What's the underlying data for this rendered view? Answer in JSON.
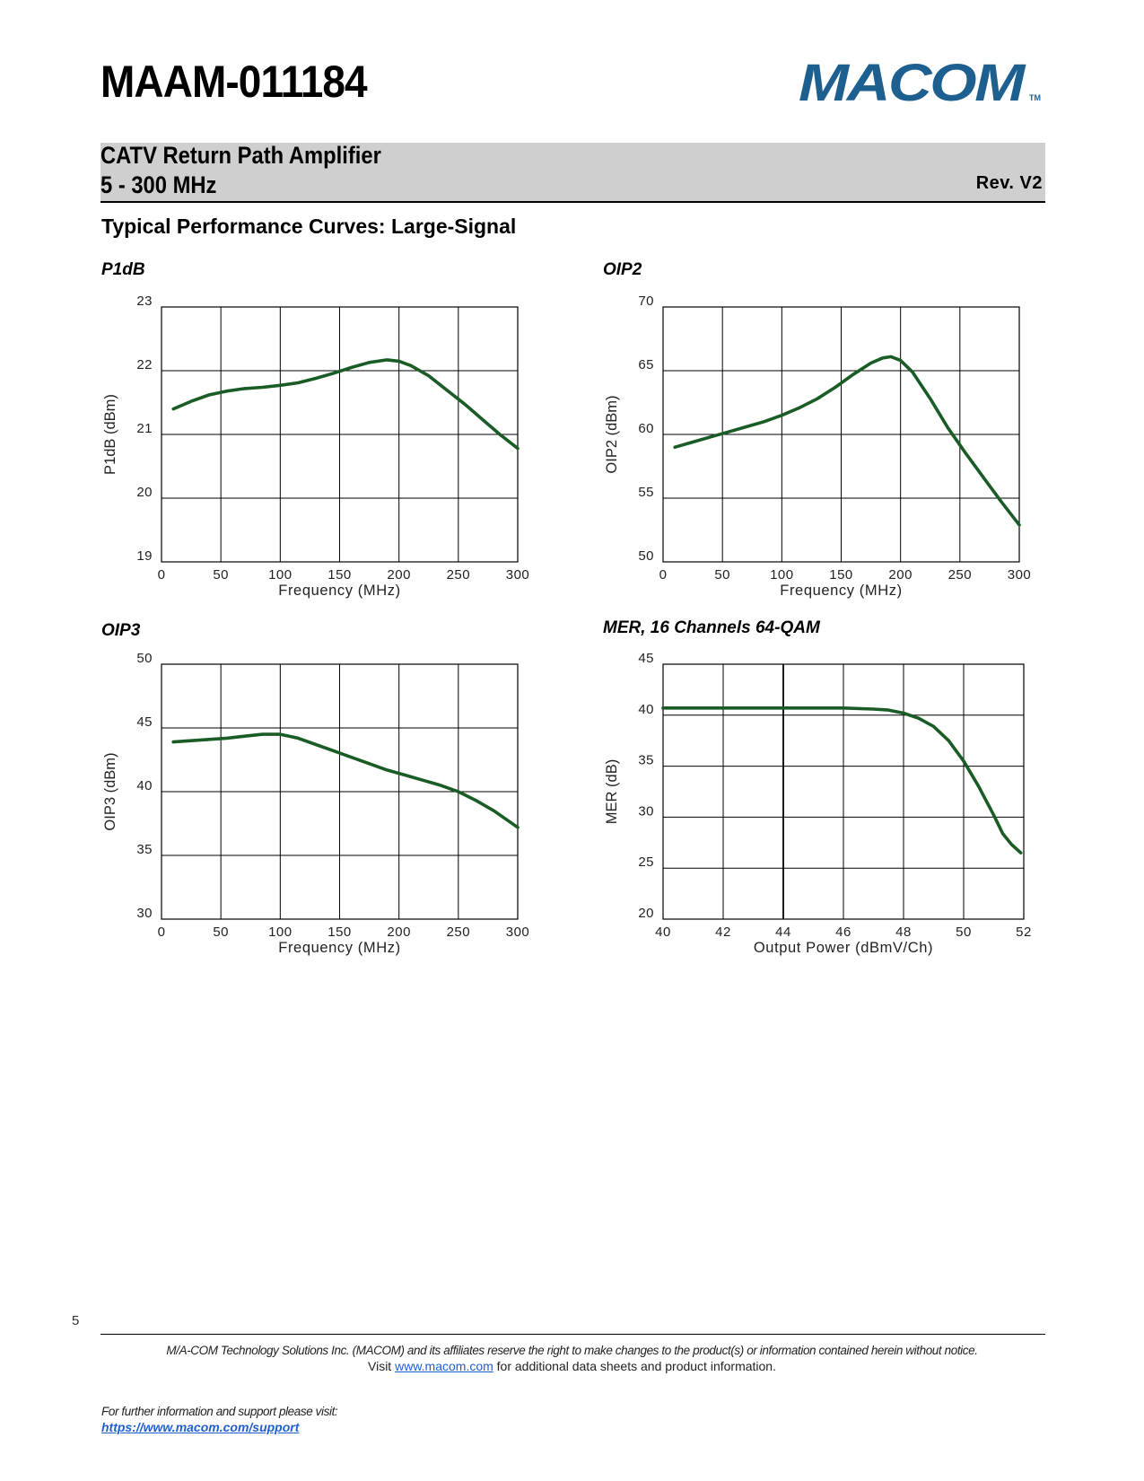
{
  "header": {
    "part_number": "MAAM-011184",
    "logo_text": "MACOM",
    "logo_tm": "TM",
    "product_title": "CATV Return Path Amplifier",
    "product_range": "5 - 300 MHz",
    "revision": "Rev. V2"
  },
  "section_title": "Typical Performance Curves: Large-Signal",
  "colors": {
    "curve": "#1a5c25",
    "logo": "#1d5f8e",
    "band": "#cfcfcf",
    "link": "#1f5fd1"
  },
  "chart_data": [
    {
      "id": "p1db",
      "type": "line",
      "title": "P1dB",
      "xlabel": "Frequency (MHz)",
      "ylabel": "P1dB (dBm)",
      "xlim": [
        0,
        300
      ],
      "ylim": [
        19,
        23
      ],
      "xticks": [
        0,
        50,
        100,
        150,
        200,
        250,
        300
      ],
      "yticks": [
        19,
        20,
        21,
        22,
        23
      ],
      "grid": true,
      "series": [
        {
          "name": "P1dB",
          "x": [
            10,
            25,
            40,
            55,
            70,
            85,
            100,
            115,
            130,
            145,
            160,
            175,
            190,
            200,
            210,
            225,
            240,
            255,
            270,
            285,
            300
          ],
          "values": [
            21.4,
            21.52,
            21.62,
            21.68,
            21.72,
            21.74,
            21.77,
            21.81,
            21.88,
            21.96,
            22.05,
            22.13,
            22.17,
            22.15,
            22.08,
            21.92,
            21.7,
            21.48,
            21.24,
            21.0,
            20.78
          ]
        }
      ]
    },
    {
      "id": "oip2",
      "type": "line",
      "title": "OIP2",
      "xlabel": "Frequency (MHz)",
      "ylabel": "OIP2 (dBm)",
      "xlim": [
        0,
        300
      ],
      "ylim": [
        50,
        70
      ],
      "xticks": [
        0,
        50,
        100,
        150,
        200,
        250,
        300
      ],
      "yticks": [
        50,
        55,
        60,
        65,
        70
      ],
      "grid": true,
      "series": [
        {
          "name": "OIP2",
          "x": [
            10,
            25,
            40,
            55,
            70,
            85,
            100,
            115,
            130,
            145,
            160,
            175,
            185,
            192,
            200,
            210,
            225,
            240,
            255,
            270,
            285,
            300
          ],
          "values": [
            59.0,
            59.4,
            59.8,
            60.2,
            60.6,
            61.0,
            61.5,
            62.1,
            62.8,
            63.7,
            64.7,
            65.6,
            66.0,
            66.1,
            65.8,
            64.9,
            62.8,
            60.5,
            58.5,
            56.6,
            54.7,
            52.9
          ]
        }
      ]
    },
    {
      "id": "oip3",
      "type": "line",
      "title": "OIP3",
      "xlabel": "Frequency (MHz)",
      "ylabel": "OIP3 (dBm)",
      "xlim": [
        0,
        300
      ],
      "ylim": [
        30,
        50
      ],
      "xticks": [
        0,
        50,
        100,
        150,
        200,
        250,
        300
      ],
      "yticks": [
        30,
        35,
        40,
        45,
        50
      ],
      "grid": true,
      "series": [
        {
          "name": "OIP3",
          "x": [
            10,
            25,
            40,
            55,
            70,
            85,
            100,
            115,
            130,
            145,
            160,
            175,
            190,
            205,
            220,
            235,
            250,
            265,
            280,
            300
          ],
          "values": [
            43.9,
            44.0,
            44.1,
            44.2,
            44.35,
            44.5,
            44.5,
            44.2,
            43.7,
            43.2,
            42.7,
            42.2,
            41.7,
            41.3,
            40.9,
            40.5,
            40.0,
            39.3,
            38.5,
            37.2
          ]
        }
      ]
    },
    {
      "id": "mer",
      "type": "line",
      "title": "MER, 16 Channels 64-QAM",
      "xlabel": "Output Power (dBmV/Ch)",
      "ylabel": "MER (dB)",
      "xlim": [
        40,
        52
      ],
      "ylim": [
        20,
        45
      ],
      "xticks": [
        40,
        42,
        44,
        46,
        48,
        50,
        52
      ],
      "yticks": [
        20,
        25,
        30,
        35,
        40,
        45
      ],
      "grid": true,
      "series": [
        {
          "name": "MER",
          "x": [
            40,
            42,
            44,
            46,
            47,
            47.5,
            48,
            48.5,
            49,
            49.5,
            50,
            50.5,
            51,
            51.3,
            51.6,
            51.9
          ],
          "values": [
            40.7,
            40.7,
            40.7,
            40.7,
            40.6,
            40.5,
            40.2,
            39.7,
            38.9,
            37.5,
            35.5,
            33.0,
            30.2,
            28.4,
            27.3,
            26.5
          ]
        }
      ]
    }
  ],
  "page_number": "5",
  "footer": {
    "notice": "M/A-COM Technology Solutions Inc. (MACOM) and its affiliates reserve the right to make changes to the product(s) or information contained herein without notice.",
    "visit_prefix": "Visit ",
    "visit_link": "www.macom.com",
    "visit_suffix": " for additional data sheets and product information.",
    "support_text": "For further information and support please visit:",
    "support_link": "https://www.macom.com/support"
  }
}
